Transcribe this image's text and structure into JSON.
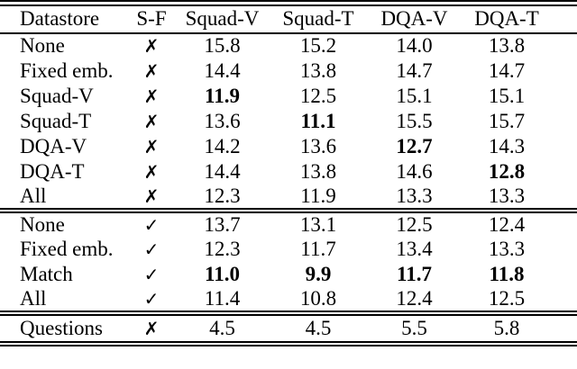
{
  "table": {
    "headers": [
      "Datastore",
      "S-F",
      "Squad-V",
      "Squad-T",
      "DQA-V",
      "DQA-T"
    ],
    "mark_glyphs": {
      "cross": "✗",
      "check": "✓"
    },
    "text_color": "#000000",
    "sections": [
      {
        "name": "no-scratch-finetune",
        "rows": [
          {
            "datastore": "None",
            "sf": "cross",
            "values": [
              "15.8",
              "15.2",
              "14.0",
              "13.8"
            ],
            "bold": [
              false,
              false,
              false,
              false
            ]
          },
          {
            "datastore": "Fixed emb.",
            "sf": "cross",
            "values": [
              "14.4",
              "13.8",
              "14.7",
              "14.7"
            ],
            "bold": [
              false,
              false,
              false,
              false
            ]
          },
          {
            "datastore": "Squad-V",
            "sf": "cross",
            "values": [
              "11.9",
              "12.5",
              "15.1",
              "15.1"
            ],
            "bold": [
              true,
              false,
              false,
              false
            ]
          },
          {
            "datastore": "Squad-T",
            "sf": "cross",
            "values": [
              "13.6",
              "11.1",
              "15.5",
              "15.7"
            ],
            "bold": [
              false,
              true,
              false,
              false
            ]
          },
          {
            "datastore": "DQA-V",
            "sf": "cross",
            "values": [
              "14.2",
              "13.6",
              "12.7",
              "14.3"
            ],
            "bold": [
              false,
              false,
              true,
              false
            ]
          },
          {
            "datastore": "DQA-T",
            "sf": "cross",
            "values": [
              "14.4",
              "13.8",
              "14.6",
              "12.8"
            ],
            "bold": [
              false,
              false,
              false,
              true
            ]
          },
          {
            "datastore": "All",
            "sf": "cross",
            "values": [
              "12.3",
              "11.9",
              "13.3",
              "13.3"
            ],
            "bold": [
              false,
              false,
              false,
              false
            ]
          }
        ]
      },
      {
        "name": "scratch-finetune",
        "rows": [
          {
            "datastore": "None",
            "sf": "check",
            "values": [
              "13.7",
              "13.1",
              "12.5",
              "12.4"
            ],
            "bold": [
              false,
              false,
              false,
              false
            ]
          },
          {
            "datastore": "Fixed emb.",
            "sf": "check",
            "values": [
              "12.3",
              "11.7",
              "13.4",
              "13.3"
            ],
            "bold": [
              false,
              false,
              false,
              false
            ]
          },
          {
            "datastore": "Match",
            "sf": "check",
            "values": [
              "11.0",
              "9.9",
              "11.7",
              "11.8"
            ],
            "bold": [
              true,
              true,
              true,
              true
            ]
          },
          {
            "datastore": "All",
            "sf": "check",
            "values": [
              "11.4",
              "10.8",
              "12.4",
              "12.5"
            ],
            "bold": [
              false,
              false,
              false,
              false
            ]
          }
        ]
      },
      {
        "name": "questions",
        "rows": [
          {
            "datastore": "Questions",
            "sf": "cross",
            "values": [
              "4.5",
              "4.5",
              "5.5",
              "5.8"
            ],
            "bold": [
              false,
              false,
              false,
              false
            ]
          }
        ]
      }
    ]
  }
}
